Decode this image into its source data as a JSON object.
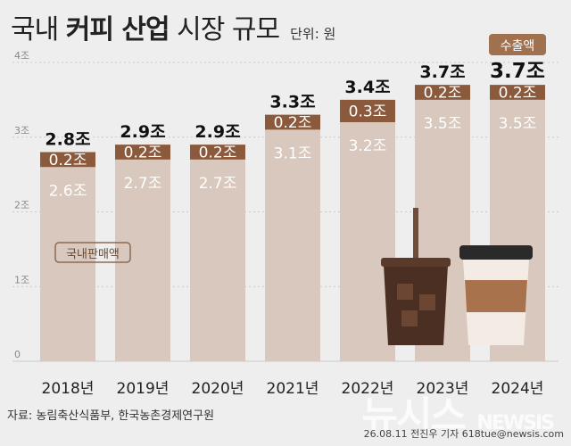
{
  "header": {
    "title_pre": "국내",
    "title_bold": "커피 산업",
    "title_post": "시장 규모",
    "unit": "단위: 원"
  },
  "legend": {
    "export_label": "수출액",
    "domestic_label": "국내판매액"
  },
  "footer": {
    "source": "자료: 농림축산식품부, 한국농촌경제연구원",
    "credit": "26.08.11  전진우 기자  618tue@newsis.com",
    "watermark_main": "뉴시스",
    "watermark_sub": "NEWSIS"
  },
  "colors": {
    "background": "#eeeeee",
    "domestic": "#d9c8bd",
    "export": "#8b5a3c",
    "export_light": "#a0714f"
  },
  "chart_data": {
    "type": "bar",
    "stacked": true,
    "categories": [
      "2018년",
      "2019년",
      "2020년",
      "2021년",
      "2022년",
      "2023년",
      "2024년"
    ],
    "y_ticks": [
      "0",
      "1조",
      "2조",
      "3조",
      "4조"
    ],
    "ylim": [
      0,
      4
    ],
    "series": [
      {
        "name": "국내판매액",
        "values": [
          2.6,
          2.7,
          2.7,
          3.1,
          3.2,
          3.5,
          3.5
        ],
        "labels": [
          "2.6조",
          "2.7조",
          "2.7조",
          "3.1조",
          "3.2조",
          "3.5조",
          "3.5조"
        ]
      },
      {
        "name": "수출액",
        "values": [
          0.2,
          0.2,
          0.2,
          0.2,
          0.3,
          0.2,
          0.2
        ],
        "labels": [
          "0.2조",
          "0.2조",
          "0.2조",
          "0.2조",
          "0.3조",
          "0.2조",
          "0.2조"
        ]
      }
    ],
    "totals": [
      2.8,
      2.9,
      2.9,
      3.3,
      3.4,
      3.7,
      3.7
    ],
    "total_labels": [
      "2.8조",
      "2.9조",
      "2.9조",
      "3.3조",
      "3.4조",
      "3.7조",
      "3.7조"
    ],
    "grid": true
  }
}
